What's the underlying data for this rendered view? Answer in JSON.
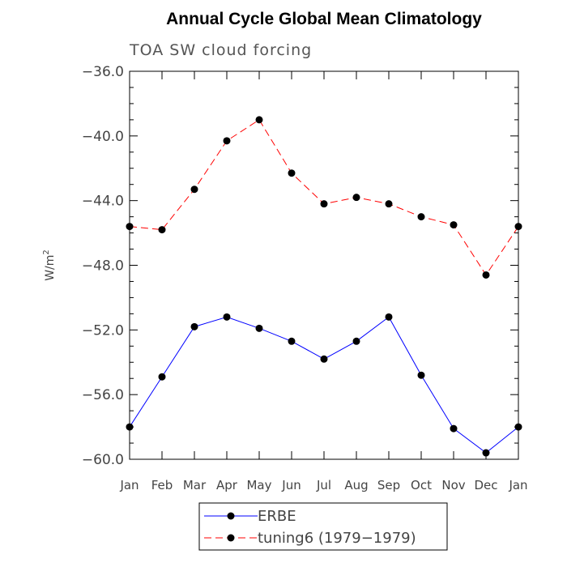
{
  "chart_data": {
    "type": "line",
    "title": "Annual Cycle Global Mean Climatology",
    "subtitle": "TOA SW cloud forcing",
    "ylabel": "W/m",
    "ylabel_sup": "2",
    "xlabel": "",
    "categories": [
      "Jan",
      "Feb",
      "Mar",
      "Apr",
      "May",
      "Jun",
      "Jul",
      "Aug",
      "Sep",
      "Oct",
      "Nov",
      "Dec",
      "Jan"
    ],
    "ylim": [
      -60,
      -36
    ],
    "yticks": [
      -36,
      -40,
      -44,
      -48,
      -52,
      -56,
      -60
    ],
    "ytick_labels": [
      "−36.0",
      "−40.0",
      "−44.0",
      "−48.0",
      "−52.0",
      "−56.0",
      "−60.0"
    ],
    "grid": false,
    "legend_position": "bottom",
    "series": [
      {
        "name": "ERBE",
        "color": "#0000ff",
        "dash": "solid",
        "values": [
          -58.0,
          -54.9,
          -51.8,
          -51.2,
          -51.9,
          -52.7,
          -53.8,
          -52.7,
          -51.2,
          -54.8,
          -58.1,
          -59.6,
          -58.0
        ]
      },
      {
        "name": "tuning6 (1979−1979)",
        "color": "#ff0000",
        "dash": "dashed",
        "values": [
          -45.6,
          -45.8,
          -43.3,
          -40.3,
          -39.0,
          -42.3,
          -44.2,
          -43.8,
          -44.2,
          -45.0,
          -45.5,
          -48.6,
          -45.6
        ]
      }
    ]
  }
}
